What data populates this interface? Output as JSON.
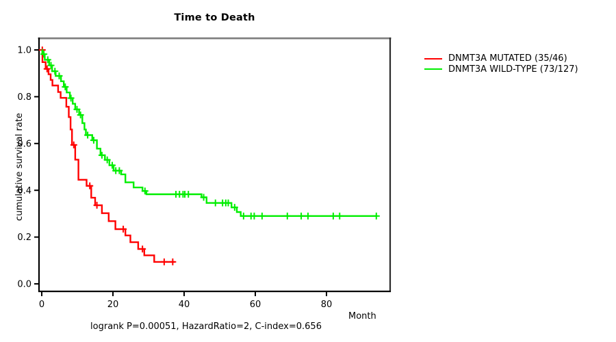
{
  "title": "Time to Death",
  "axes": {
    "y_label": "cumulative survival rate",
    "x_label": "Month",
    "x_ticks": [
      0,
      20,
      40,
      60,
      80
    ],
    "y_tick_labels": [
      "0.0",
      "0.2",
      "0.4",
      "0.6",
      "0.8",
      "1.0"
    ],
    "y_tick_values": [
      0.0,
      0.2,
      0.4,
      0.6,
      0.8,
      1.0
    ]
  },
  "footer": "logrank P=0.00051, HazardRatio=2, C-index=0.656",
  "legend": [
    {
      "label": "DNMT3A MUTATED (35/46)",
      "color": "#FF0000"
    },
    {
      "label": "DNMT3A WILD-TYPE (73/127)",
      "color": "#00EE00"
    }
  ],
  "colors": {
    "red_series": "#FF0000",
    "green_series": "#00EE00",
    "box_top": "#808080",
    "box_right": "#2B2B2B",
    "axis": "#000000"
  },
  "chart_data": {
    "type": "line",
    "subtype": "kaplan-meier-step",
    "title": "Time to Death",
    "xlabel": "Month",
    "ylabel": "cumulative survival rate",
    "xlim": [
      0,
      98
    ],
    "ylim": [
      0.0,
      1.0
    ],
    "grid": false,
    "legend_position": "right-outside",
    "series": [
      {
        "name": "DNMT3A MUTATED (35/46)",
        "color": "#FF0000",
        "start": [
          0,
          1.0
        ],
        "end_time": 37.4,
        "steps": [
          [
            0.2,
            0.948
          ],
          [
            1.1,
            0.919
          ],
          [
            1.9,
            0.896
          ],
          [
            2.5,
            0.872
          ],
          [
            3.0,
            0.848
          ],
          [
            4.6,
            0.82
          ],
          [
            5.3,
            0.795
          ],
          [
            6.9,
            0.757
          ],
          [
            7.6,
            0.713
          ],
          [
            8.1,
            0.66
          ],
          [
            8.5,
            0.594
          ],
          [
            9.4,
            0.531
          ],
          [
            10.3,
            0.445
          ],
          [
            12.6,
            0.419
          ],
          [
            13.9,
            0.368
          ],
          [
            15.0,
            0.336
          ],
          [
            16.9,
            0.302
          ],
          [
            18.8,
            0.268
          ],
          [
            20.7,
            0.234
          ],
          [
            23.5,
            0.207
          ],
          [
            24.9,
            0.178
          ],
          [
            27.1,
            0.149
          ],
          [
            28.8,
            0.122
          ],
          [
            31.6,
            0.094
          ]
        ],
        "censors": [
          [
            0.15,
            1.0
          ],
          [
            1.5,
            0.919
          ],
          [
            9.0,
            0.594
          ],
          [
            13.5,
            0.419
          ],
          [
            15.5,
            0.336
          ],
          [
            22.9,
            0.234
          ],
          [
            28.3,
            0.149
          ],
          [
            34.4,
            0.094
          ],
          [
            36.8,
            0.094
          ]
        ]
      },
      {
        "name": "DNMT3A WILD-TYPE (73/127)",
        "color": "#00EE00",
        "start": [
          0,
          1.0
        ],
        "end_time": 94.3,
        "steps": [
          [
            0.15,
            0.982
          ],
          [
            0.85,
            0.958
          ],
          [
            2.1,
            0.934
          ],
          [
            2.9,
            0.909
          ],
          [
            3.9,
            0.889
          ],
          [
            5.4,
            0.866
          ],
          [
            6.2,
            0.842
          ],
          [
            7.0,
            0.818
          ],
          [
            7.9,
            0.794
          ],
          [
            8.7,
            0.77
          ],
          [
            9.4,
            0.746
          ],
          [
            10.5,
            0.722
          ],
          [
            11.4,
            0.687
          ],
          [
            12.0,
            0.66
          ],
          [
            12.4,
            0.636
          ],
          [
            14.2,
            0.614
          ],
          [
            15.5,
            0.578
          ],
          [
            16.5,
            0.55
          ],
          [
            17.75,
            0.53
          ],
          [
            19.0,
            0.507
          ],
          [
            20.2,
            0.484
          ],
          [
            22.3,
            0.468
          ],
          [
            23.5,
            0.434
          ],
          [
            25.8,
            0.412
          ],
          [
            28.3,
            0.397
          ],
          [
            29.4,
            0.383
          ],
          [
            44.9,
            0.37
          ],
          [
            46.3,
            0.346
          ],
          [
            53.3,
            0.327
          ],
          [
            54.8,
            0.307
          ],
          [
            55.9,
            0.29
          ]
        ],
        "censors": [
          [
            0.6,
            0.982
          ],
          [
            1.7,
            0.958
          ],
          [
            2.6,
            0.934
          ],
          [
            3.7,
            0.909
          ],
          [
            4.9,
            0.889
          ],
          [
            6.6,
            0.842
          ],
          [
            8.2,
            0.794
          ],
          [
            9.9,
            0.746
          ],
          [
            10.9,
            0.722
          ],
          [
            12.9,
            0.636
          ],
          [
            14.6,
            0.614
          ],
          [
            16.9,
            0.55
          ],
          [
            18.4,
            0.53
          ],
          [
            19.8,
            0.507
          ],
          [
            20.8,
            0.484
          ],
          [
            21.8,
            0.484
          ],
          [
            29.0,
            0.397
          ],
          [
            37.7,
            0.383
          ],
          [
            38.7,
            0.383
          ],
          [
            39.7,
            0.383
          ],
          [
            40.2,
            0.383
          ],
          [
            41.2,
            0.383
          ],
          [
            45.5,
            0.37
          ],
          [
            48.8,
            0.346
          ],
          [
            50.8,
            0.346
          ],
          [
            51.7,
            0.346
          ],
          [
            52.4,
            0.346
          ],
          [
            54.2,
            0.327
          ],
          [
            56.7,
            0.29
          ],
          [
            58.8,
            0.29
          ],
          [
            59.7,
            0.29
          ],
          [
            61.9,
            0.29
          ],
          [
            69.0,
            0.29
          ],
          [
            72.9,
            0.29
          ],
          [
            74.8,
            0.29
          ],
          [
            81.9,
            0.29
          ],
          [
            83.7,
            0.29
          ],
          [
            94.0,
            0.29
          ]
        ]
      }
    ]
  }
}
